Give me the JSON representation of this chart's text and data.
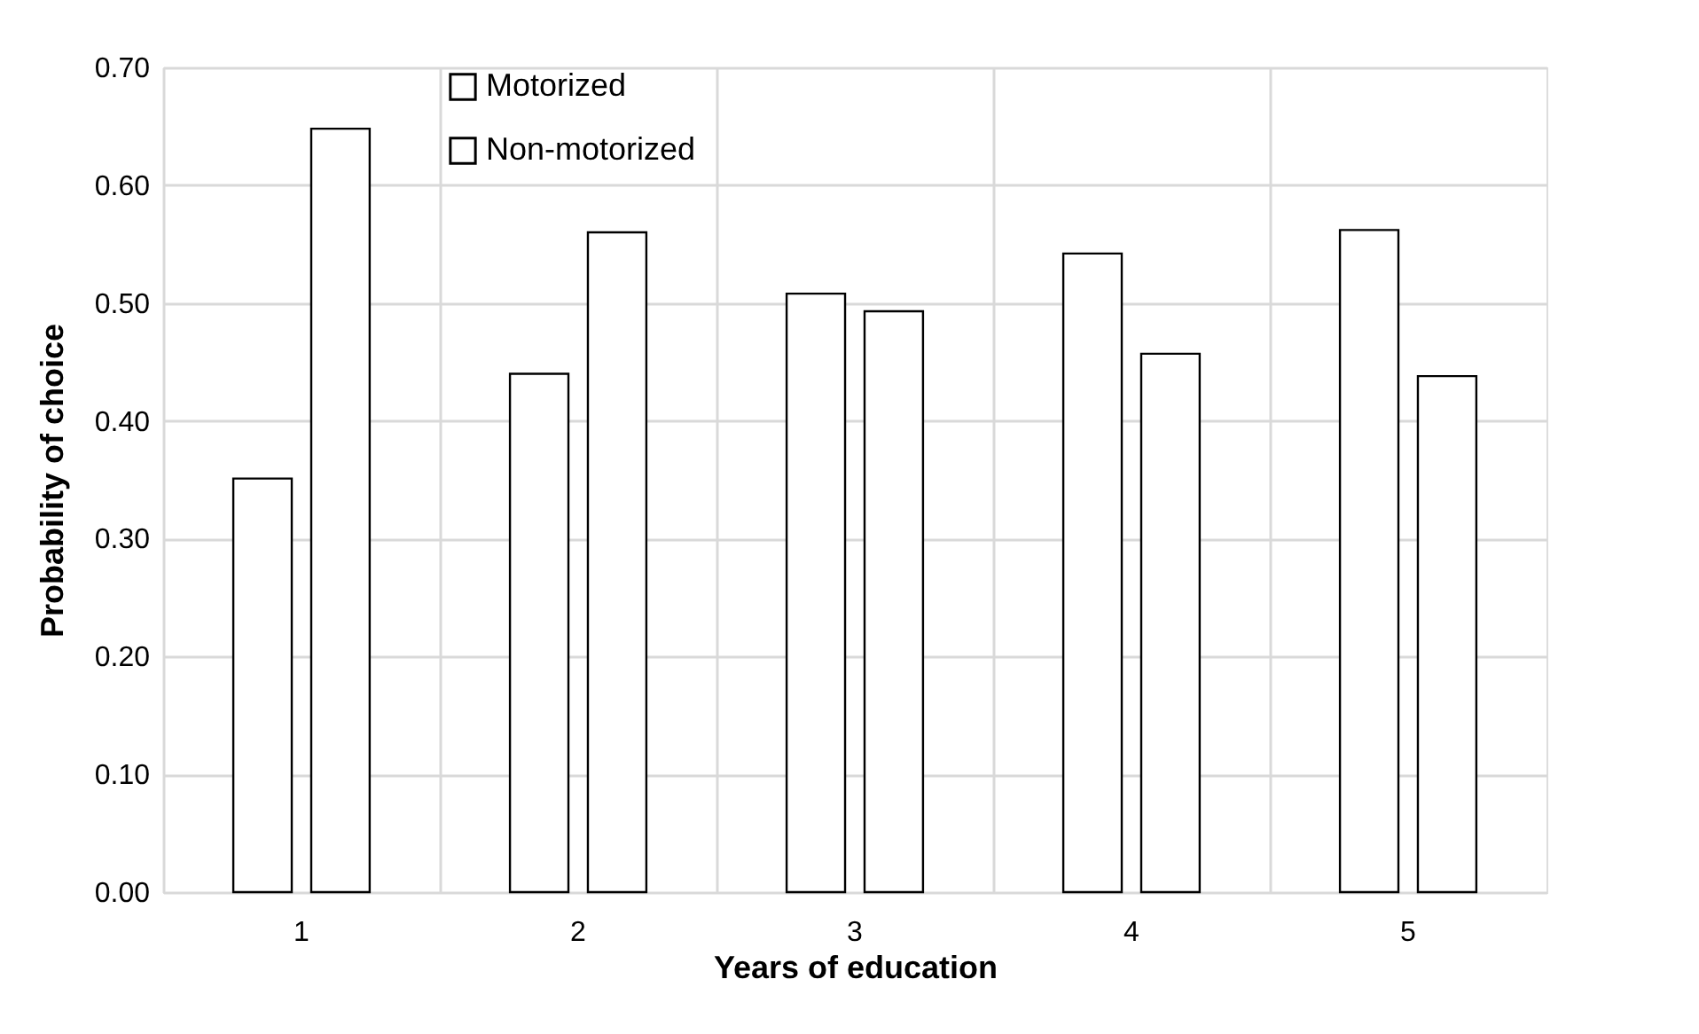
{
  "chart_data": {
    "type": "bar",
    "xlabel": "Years of education",
    "ylabel": "Probability of choice",
    "categories": [
      "1",
      "2",
      "3",
      "4",
      "5"
    ],
    "series": [
      {
        "name": "Motorized",
        "color": "#ffffff",
        "values": [
          0.351,
          0.44,
          0.508,
          0.542,
          0.562
        ]
      },
      {
        "name": "Non-motorized",
        "color": "#ffffff",
        "values": [
          0.648,
          0.56,
          0.493,
          0.457,
          0.438
        ]
      }
    ],
    "ylim": [
      0,
      0.7
    ],
    "yticks": [
      {
        "value": 0,
        "label": "0.00"
      },
      {
        "value": 0.1,
        "label": "0.10"
      },
      {
        "value": 0.2,
        "label": "0.20"
      },
      {
        "value": 0.3,
        "label": "0.30"
      },
      {
        "value": 0.4,
        "label": "0.40"
      },
      {
        "value": 0.5,
        "label": "0.50"
      },
      {
        "value": 0.6,
        "label": "0.60"
      },
      {
        "value": 0.7,
        "label": "0.70"
      }
    ],
    "grid": true,
    "legend": "top left"
  }
}
